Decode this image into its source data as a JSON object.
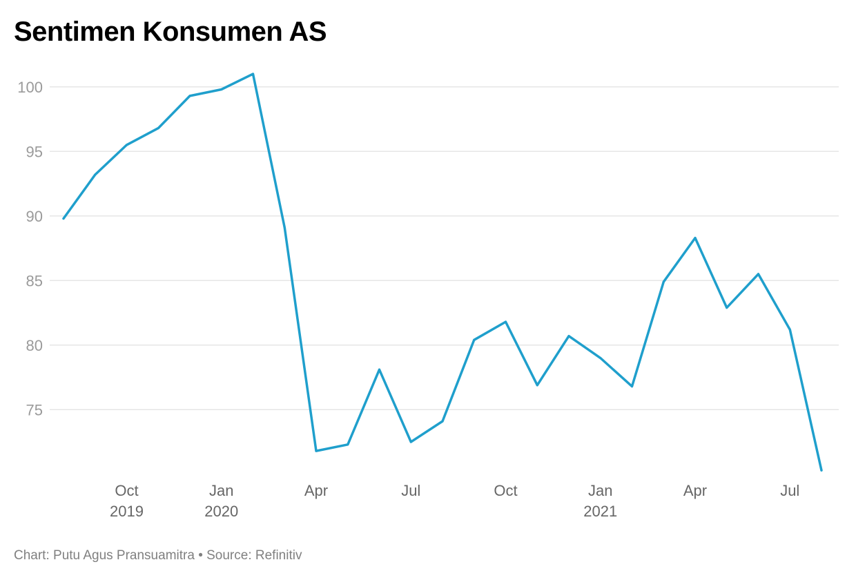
{
  "title": "Sentimen Konsumen AS",
  "footer": "Chart: Putu Agus Pransuamitra • Source: Refinitiv",
  "chart_data": {
    "type": "line",
    "title": "Sentimen Konsumen AS",
    "xlabel": "",
    "ylabel": "",
    "grid": true,
    "legend": "none",
    "line_color": "#1f9fcc",
    "grid_color": "#e6e6e6",
    "ylim": [
      70,
      101
    ],
    "yticks": [
      75,
      80,
      85,
      90,
      95,
      100
    ],
    "x": [
      "2019-08",
      "2019-09",
      "2019-10",
      "2019-11",
      "2019-12",
      "2020-01",
      "2020-02",
      "2020-03",
      "2020-04",
      "2020-05",
      "2020-06",
      "2020-07",
      "2020-08",
      "2020-09",
      "2020-10",
      "2020-11",
      "2020-12",
      "2021-01",
      "2021-02",
      "2021-03",
      "2021-04",
      "2021-05",
      "2021-06",
      "2021-07",
      "2021-08"
    ],
    "series": [
      {
        "values": [
          89.8,
          93.2,
          95.5,
          96.8,
          99.3,
          99.8,
          101.0,
          89.1,
          71.8,
          72.3,
          78.1,
          72.5,
          74.1,
          80.4,
          81.8,
          76.9,
          80.7,
          79.0,
          76.8,
          84.9,
          88.3,
          82.9,
          85.5,
          81.2,
          70.3
        ]
      }
    ],
    "xtick_labels": [
      {
        "x": "2019-10",
        "month": "Oct",
        "year": "2019"
      },
      {
        "x": "2020-01",
        "month": "Jan",
        "year": "2020"
      },
      {
        "x": "2020-04",
        "month": "Apr",
        "year": ""
      },
      {
        "x": "2020-07",
        "month": "Jul",
        "year": ""
      },
      {
        "x": "2020-10",
        "month": "Oct",
        "year": ""
      },
      {
        "x": "2021-01",
        "month": "Jan",
        "year": "2021"
      },
      {
        "x": "2021-04",
        "month": "Apr",
        "year": ""
      },
      {
        "x": "2021-07",
        "month": "Jul",
        "year": ""
      }
    ]
  }
}
